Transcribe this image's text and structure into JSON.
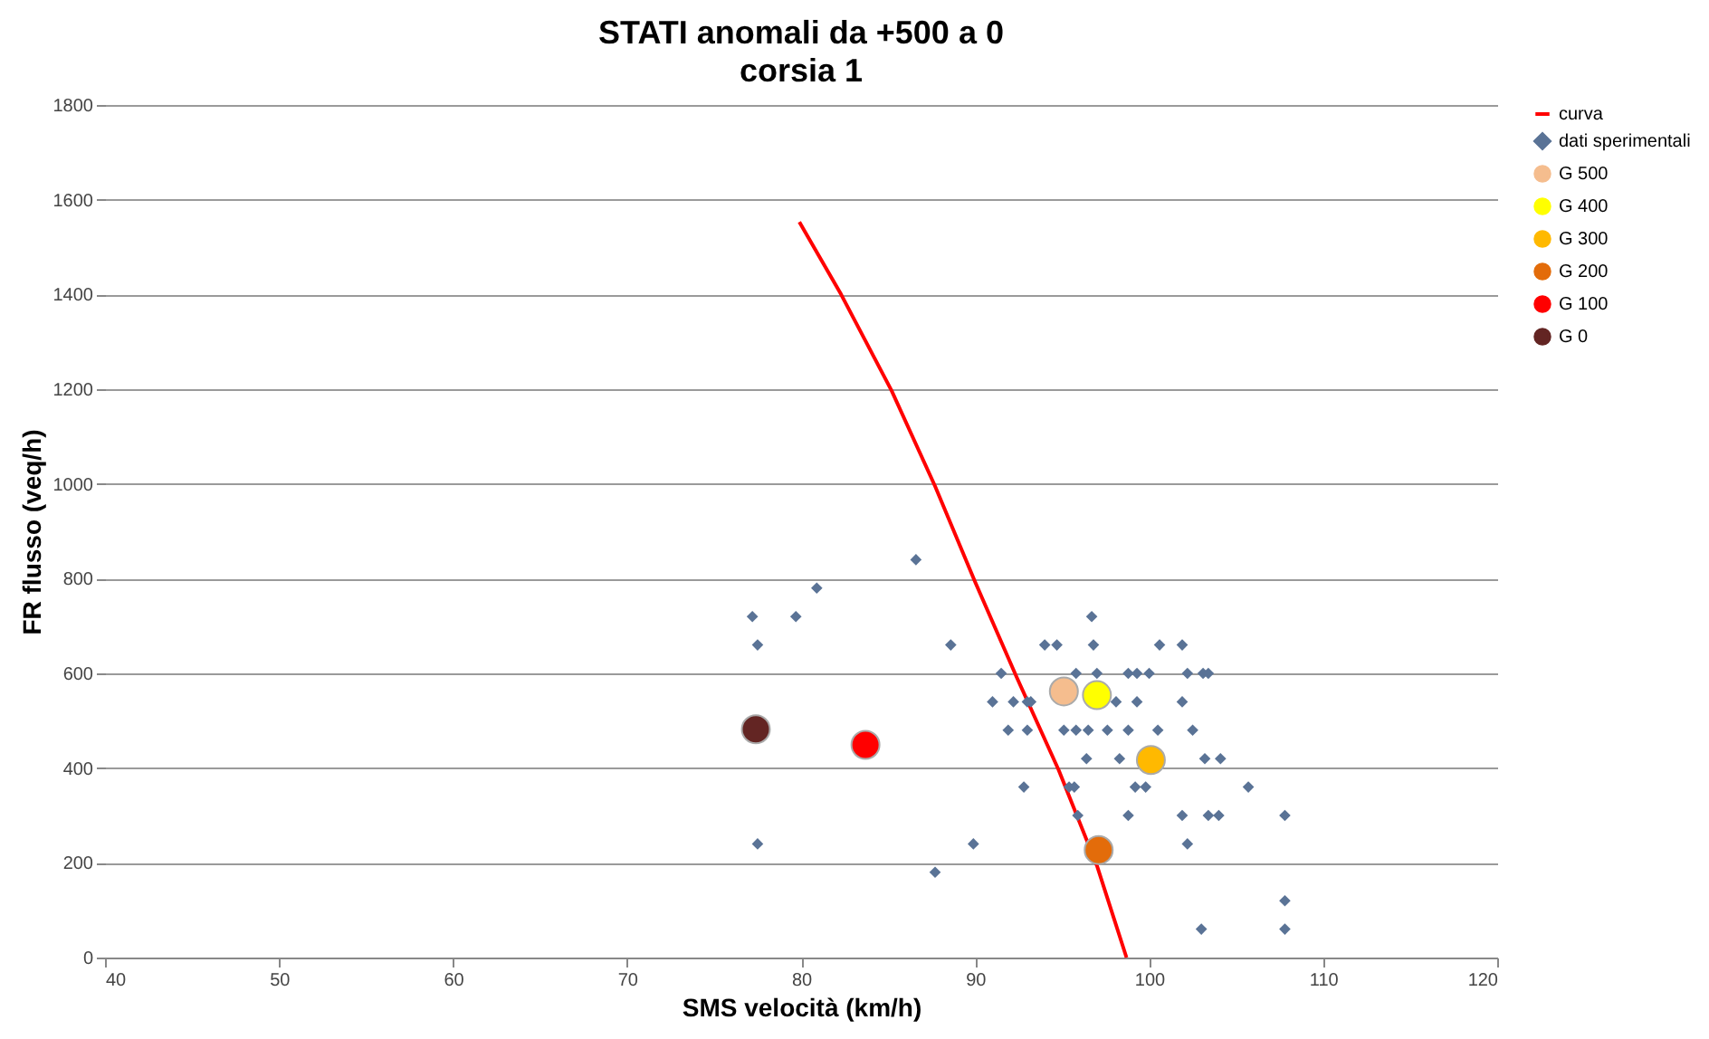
{
  "chart_data": {
    "type": "scatter",
    "title": "STATI anomali  da +500 a 0",
    "subtitle": "corsia  1",
    "xlabel": "SMS velocità (km/h)",
    "ylabel": "FR flusso (veq/h)",
    "xlim": [
      40,
      120
    ],
    "xticks": [
      40,
      50,
      60,
      70,
      80,
      90,
      100,
      110,
      120
    ],
    "ylim": [
      0,
      1800
    ],
    "yticks": [
      0,
      200,
      400,
      600,
      800,
      1000,
      1200,
      1400,
      1600,
      1800
    ],
    "grid": "y",
    "legend": "right",
    "series": [
      {
        "name": "curva",
        "type": "line",
        "color": "#ff0000",
        "line_style": "solid",
        "marker": "none",
        "x": [
          79.9,
          82.3,
          85.2,
          87.7,
          90.0,
          92.4,
          94.8,
          97.0,
          98.7
        ],
        "values": [
          1553,
          1400,
          1197,
          995,
          793,
          591,
          396,
          194,
          0
        ]
      },
      {
        "name": "dati sperimentali",
        "color": "#5a7396",
        "marker": "diamond",
        "x": [
          77.2,
          77.5,
          79.7,
          80.9,
          86.6,
          88.6,
          77.5,
          87.7,
          89.9,
          91.5,
          91.0,
          92.2,
          93.0,
          94.0,
          94.7,
          91.9,
          93.0,
          92.8,
          96.7,
          96.8,
          100.6,
          101.9,
          95.8,
          97.0,
          98.8,
          99.3,
          100.0,
          102.2,
          103.1,
          103.4,
          93.2,
          98.1,
          99.3,
          101.9,
          95.1,
          95.8,
          96.5,
          97.6,
          98.8,
          100.5,
          102.5,
          96.4,
          98.3,
          103.2,
          104.1,
          95.4,
          95.7,
          99.2,
          99.8,
          105.7,
          95.9,
          98.8,
          101.9,
          103.4,
          104.0,
          107.8,
          102.2,
          107.8,
          103.0,
          107.8
        ],
        "values": [
          720,
          660,
          720,
          780,
          840,
          660,
          240,
          180,
          240,
          600,
          540,
          540,
          540,
          660,
          660,
          480,
          480,
          360,
          720,
          660,
          660,
          660,
          600,
          600,
          600,
          600,
          600,
          600,
          600,
          600,
          540,
          540,
          540,
          540,
          480,
          480,
          480,
          480,
          480,
          480,
          480,
          420,
          420,
          420,
          420,
          360,
          360,
          360,
          360,
          360,
          300,
          300,
          300,
          300,
          300,
          300,
          240,
          120,
          60,
          60
        ]
      },
      {
        "name": "G 500",
        "color": "#f5bd8e",
        "marker": "circle",
        "x": [
          95.1
        ],
        "values": [
          562
        ]
      },
      {
        "name": "G 400",
        "color": "#ffff00",
        "marker": "circle",
        "x": [
          97.0
        ],
        "values": [
          554
        ]
      },
      {
        "name": "G 300",
        "color": "#ffb900",
        "marker": "circle",
        "x": [
          100.1
        ],
        "values": [
          417
        ]
      },
      {
        "name": "G 200",
        "color": "#e36c0a",
        "marker": "circle",
        "x": [
          97.1
        ],
        "values": [
          227
        ]
      },
      {
        "name": "G 100",
        "color": "#ff0000",
        "marker": "circle",
        "x": [
          83.7
        ],
        "values": [
          449
        ]
      },
      {
        "name": "G 0",
        "color": "#632523",
        "marker": "circle",
        "x": [
          77.4
        ],
        "values": [
          482
        ]
      }
    ]
  }
}
